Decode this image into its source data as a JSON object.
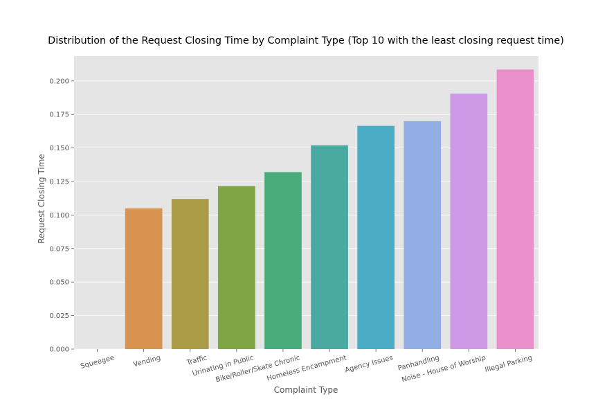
{
  "chart_data": {
    "type": "bar",
    "title": "Distribution of the Request Closing Time by Complaint Type (Top 10 with the least closing request time)",
    "xlabel": "Complaint Type",
    "ylabel": "Request Closing Time",
    "categories": [
      "Squeegee",
      "Vending",
      "Traffic",
      "Urinating in Public",
      "Bike/Roller/Skate Chronic",
      "Homeless Encampment",
      "Agency Issues",
      "Panhandling",
      "Noise - House of Worship",
      "Illegal Parking"
    ],
    "values": [
      0.0,
      0.105,
      0.112,
      0.1215,
      0.132,
      0.152,
      0.1665,
      0.17,
      0.1905,
      0.2085
    ],
    "colors": [
      "#e1812c",
      "#d8944f",
      "#aa9c46",
      "#7fa645",
      "#4aab7b",
      "#4aa9a1",
      "#4bacc5",
      "#92aee4",
      "#cd98e6",
      "#e98fca"
    ],
    "yticks": [
      "0.000",
      "0.025",
      "0.050",
      "0.075",
      "0.100",
      "0.125",
      "0.150",
      "0.175",
      "0.200"
    ],
    "ylim": [
      0,
      0.2185
    ],
    "grid": true,
    "background": "#e5e5e5"
  }
}
